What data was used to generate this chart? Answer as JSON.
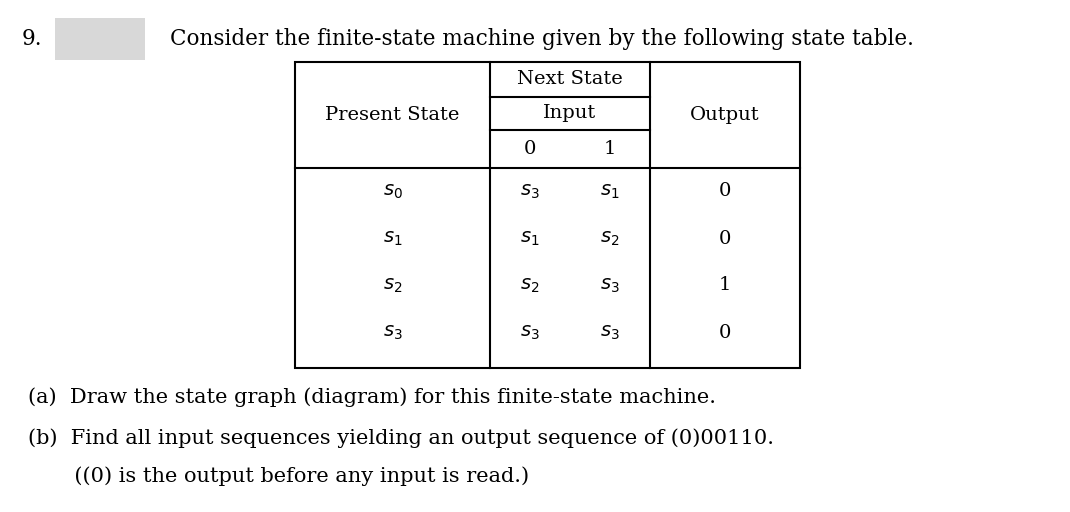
{
  "title_number": "9.",
  "title_text": "Consider the finite-state machine given by the following state table.",
  "bg_color": "#ffffff",
  "font_color": "#000000",
  "gray_box_color": "#d8d8d8",
  "part_a": "(a)  Draw the state graph (diagram) for this finite-state machine.",
  "part_b_line1": "(b)  Find all input sequences yielding an output sequence of (0)00110.",
  "part_b_line2": "       ((0) is the output before any input is read.)",
  "state_labels": [
    "$s_0$",
    "$s_1$",
    "$s_2$",
    "$s_3$"
  ],
  "ns0_labels": [
    "$s_3$",
    "$s_1$",
    "$s_2$",
    "$s_3$"
  ],
  "ns1_labels": [
    "$s_1$",
    "$s_2$",
    "$s_3$",
    "$s_3$"
  ],
  "out_labels": [
    "0",
    "0",
    "1",
    "0"
  ],
  "title_fs": 15.5,
  "table_fs": 14,
  "body_fs": 15
}
